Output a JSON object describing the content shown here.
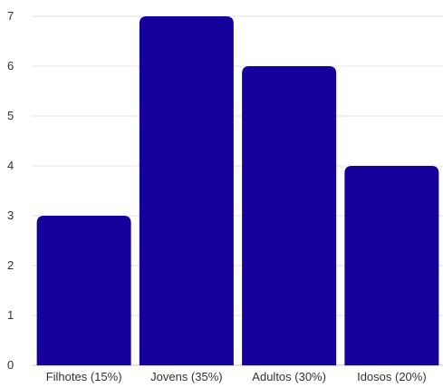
{
  "chart_data": {
    "type": "bar",
    "title": "",
    "xlabel": "",
    "ylabel": "",
    "categories": [
      "Filhotes (15%)",
      "Jovens (35%)",
      "Adultos (30%)",
      "Idosos (20%)"
    ],
    "values": [
      3,
      7,
      6,
      4
    ],
    "ylim": [
      0,
      7
    ],
    "yticks": [
      0,
      1,
      2,
      3,
      4,
      5,
      6,
      7
    ],
    "grid": true,
    "bar_color": "#14009b"
  }
}
